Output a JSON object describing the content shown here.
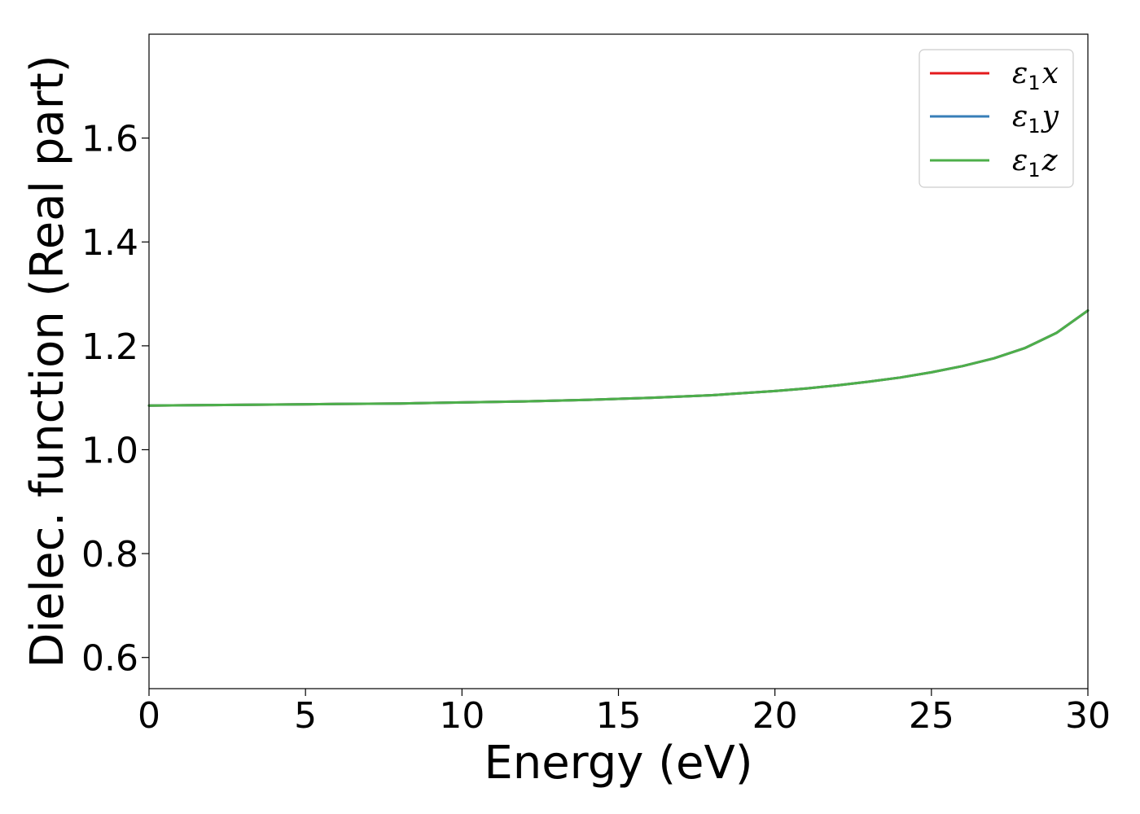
{
  "chart_data": {
    "type": "line",
    "title": "",
    "xlabel": "Energy (eV)",
    "ylabel": "Dielec. function (Real part)",
    "xlim": [
      0,
      30
    ],
    "ylim": [
      0.54,
      1.8
    ],
    "x_ticks": [
      0,
      5,
      10,
      15,
      20,
      25,
      30
    ],
    "x_tick_labels": [
      "0",
      "5",
      "10",
      "15",
      "20",
      "25",
      "30"
    ],
    "y_ticks": [
      0.6,
      0.8,
      1.0,
      1.2,
      1.4,
      1.6
    ],
    "y_tick_labels": [
      "0.6",
      "0.8",
      "1.0",
      "1.2",
      "1.4",
      "1.6"
    ],
    "grid": false,
    "legend_position": "top-right",
    "x": [
      0,
      2,
      4,
      6,
      8,
      10,
      12,
      14,
      16,
      18,
      20,
      21,
      22,
      23,
      24,
      25,
      26,
      27,
      28,
      29,
      30
    ],
    "series": [
      {
        "name": "ε1x",
        "legend_base": "ε",
        "legend_sub": "1",
        "legend_var": "x",
        "color": "#e41a1c",
        "values": [
          1.085,
          1.086,
          1.087,
          1.088,
          1.089,
          1.091,
          1.093,
          1.096,
          1.1,
          1.105,
          1.113,
          1.118,
          1.124,
          1.131,
          1.139,
          1.149,
          1.161,
          1.176,
          1.196,
          1.225,
          1.268
        ]
      },
      {
        "name": "ε1y",
        "legend_base": "ε",
        "legend_sub": "1",
        "legend_var": "y",
        "color": "#377eb8",
        "values": [
          1.085,
          1.086,
          1.087,
          1.088,
          1.089,
          1.091,
          1.093,
          1.096,
          1.1,
          1.105,
          1.113,
          1.118,
          1.124,
          1.131,
          1.139,
          1.149,
          1.161,
          1.176,
          1.196,
          1.225,
          1.268
        ]
      },
      {
        "name": "ε1z",
        "legend_base": "ε",
        "legend_sub": "1",
        "legend_var": "z",
        "color": "#4daf4a",
        "values": [
          1.085,
          1.086,
          1.087,
          1.088,
          1.089,
          1.091,
          1.093,
          1.096,
          1.1,
          1.105,
          1.113,
          1.118,
          1.124,
          1.131,
          1.139,
          1.149,
          1.161,
          1.176,
          1.196,
          1.225,
          1.268
        ]
      }
    ]
  }
}
